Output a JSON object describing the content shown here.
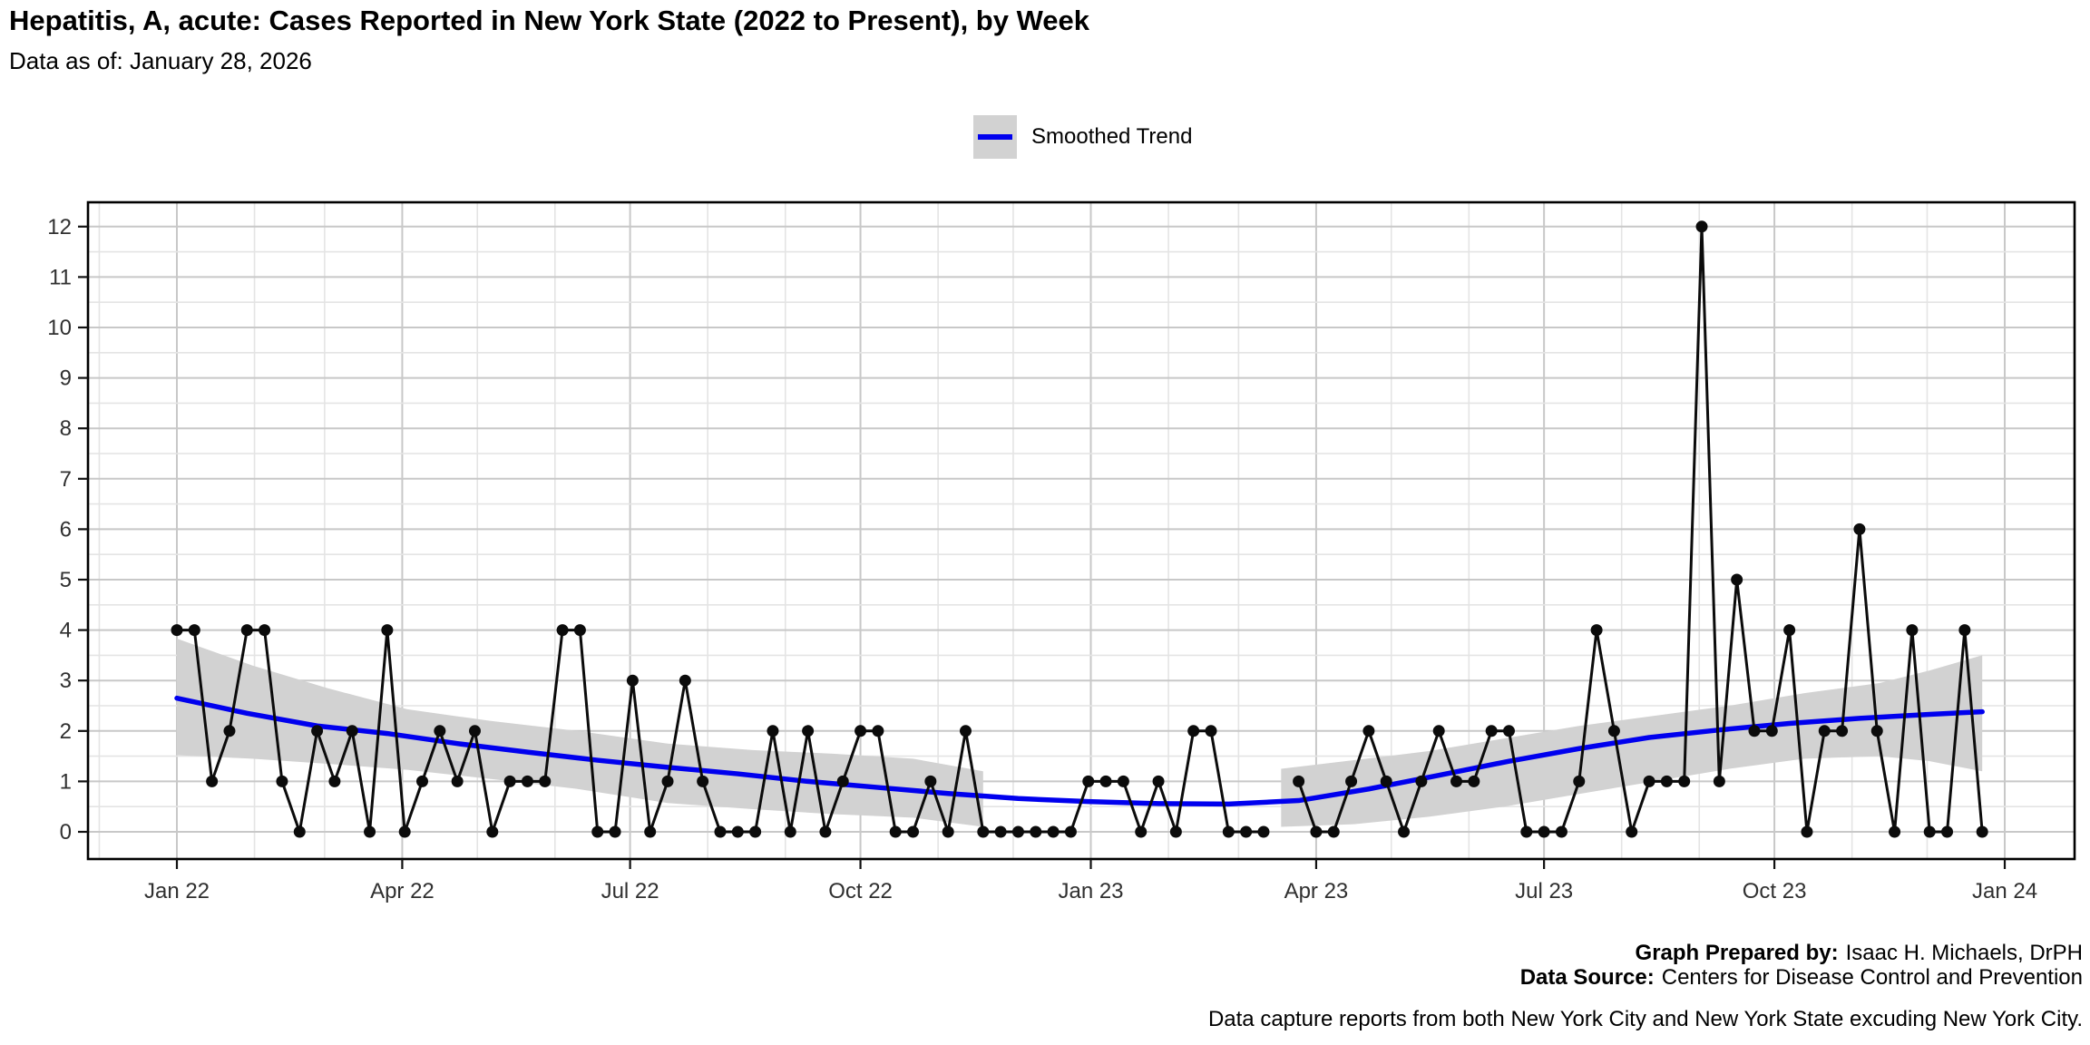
{
  "chart_data": {
    "type": "line",
    "title": "Hepatitis, A, acute: Cases Reported in New York State (2022 to Present), by Week",
    "subtitle": "Data as of: January 28, 2026",
    "legend_label": "Smoothed Trend",
    "grid": "on",
    "legend_position": "top-center",
    "y_axis": {
      "label": "",
      "min": 0,
      "max": 12,
      "ticks": [
        0,
        1,
        2,
        3,
        4,
        5,
        6,
        7,
        8,
        9,
        10,
        11,
        12
      ]
    },
    "x_axis": {
      "label": "",
      "ticks": [
        {
          "label": "Jan 22",
          "day": 0
        },
        {
          "label": "Apr 22",
          "day": 90
        },
        {
          "label": "Jul 22",
          "day": 181
        },
        {
          "label": "Oct 22",
          "day": 273
        },
        {
          "label": "Jan 23",
          "day": 365
        },
        {
          "label": "Apr 23",
          "day": 455
        },
        {
          "label": "Jul 23",
          "day": 546
        },
        {
          "label": "Oct 23",
          "day": 638
        },
        {
          "label": "Jan 24",
          "day": 730
        }
      ]
    },
    "series": {
      "name": "Weekly reported cases",
      "point_interval_days": 7,
      "first_point_day": 0,
      "values": [
        4,
        4,
        1,
        2,
        4,
        4,
        1,
        0,
        2,
        1,
        2,
        0,
        4,
        0,
        1,
        2,
        1,
        2,
        0,
        1,
        1,
        1,
        4,
        4,
        0,
        0,
        3,
        0,
        1,
        3,
        1,
        0,
        0,
        0,
        2,
        0,
        2,
        0,
        1,
        2,
        2,
        0,
        0,
        1,
        0,
        2,
        0,
        0,
        0,
        0,
        0,
        0,
        1,
        1,
        1,
        0,
        1,
        0,
        2,
        2,
        0,
        0,
        0,
        null,
        1,
        0,
        0,
        1,
        2,
        1,
        0,
        1,
        2,
        1,
        1,
        2,
        2,
        0,
        0,
        0,
        1,
        4,
        2,
        0,
        1,
        1,
        1,
        12,
        1,
        5,
        2,
        2,
        4,
        0,
        2,
        2,
        6,
        2,
        0,
        4,
        0,
        0,
        4,
        0
      ]
    },
    "smoothed_trend": {
      "points": [
        [
          0,
          2.65
        ],
        [
          28,
          2.35
        ],
        [
          56,
          2.1
        ],
        [
          84,
          1.95
        ],
        [
          112,
          1.75
        ],
        [
          140,
          1.58
        ],
        [
          168,
          1.42
        ],
        [
          196,
          1.28
        ],
        [
          224,
          1.15
        ],
        [
          252,
          1.0
        ],
        [
          280,
          0.88
        ],
        [
          308,
          0.76
        ],
        [
          336,
          0.66
        ],
        [
          364,
          0.6
        ],
        [
          392,
          0.56
        ],
        [
          420,
          0.55
        ],
        [
          448,
          0.62
        ],
        [
          476,
          0.85
        ],
        [
          504,
          1.12
        ],
        [
          532,
          1.4
        ],
        [
          560,
          1.65
        ],
        [
          588,
          1.87
        ],
        [
          616,
          2.02
        ],
        [
          644,
          2.15
        ],
        [
          672,
          2.25
        ],
        [
          700,
          2.33
        ],
        [
          721,
          2.38
        ]
      ],
      "ribbon_segments": [
        [
          [
            0,
            1.52,
            3.83
          ],
          [
            30,
            1.45,
            3.3
          ],
          [
            60,
            1.35,
            2.85
          ],
          [
            92,
            1.23,
            2.43
          ],
          [
            125,
            1.05,
            2.2
          ],
          [
            160,
            0.85,
            2.0
          ],
          [
            196,
            0.57,
            1.75
          ],
          [
            230,
            0.45,
            1.62
          ],
          [
            262,
            0.35,
            1.55
          ],
          [
            294,
            0.28,
            1.45
          ],
          [
            322,
            0.1,
            1.2
          ]
        ],
        [
          [
            441,
            0.1,
            1.25
          ],
          [
            470,
            0.15,
            1.42
          ],
          [
            500,
            0.3,
            1.6
          ],
          [
            530,
            0.5,
            1.85
          ],
          [
            560,
            0.75,
            2.1
          ],
          [
            590,
            1.0,
            2.3
          ],
          [
            620,
            1.25,
            2.5
          ],
          [
            650,
            1.45,
            2.75
          ],
          [
            680,
            1.5,
            2.95
          ],
          [
            700,
            1.4,
            3.2
          ],
          [
            721,
            1.2,
            3.5
          ]
        ]
      ]
    },
    "colors": {
      "line": "#0b0b0b",
      "point": "#0b0b0b",
      "trend": "#0000ee",
      "ribbon": "#d2d2d2",
      "grid_major": "#c8c8c8",
      "grid_minor": "#e4e4e4",
      "panel_border": "#000000",
      "tick": "#111111",
      "tick_label": "#303030"
    }
  },
  "footer": {
    "prepared_by_label": "Graph Prepared by:",
    "prepared_by_value": "Isaac H. Michaels, DrPH",
    "source_label": "Data Source:",
    "source_value": "Centers for Disease Control and Prevention",
    "note": "Data capture reports from both New York City and New York State excuding New York City."
  }
}
